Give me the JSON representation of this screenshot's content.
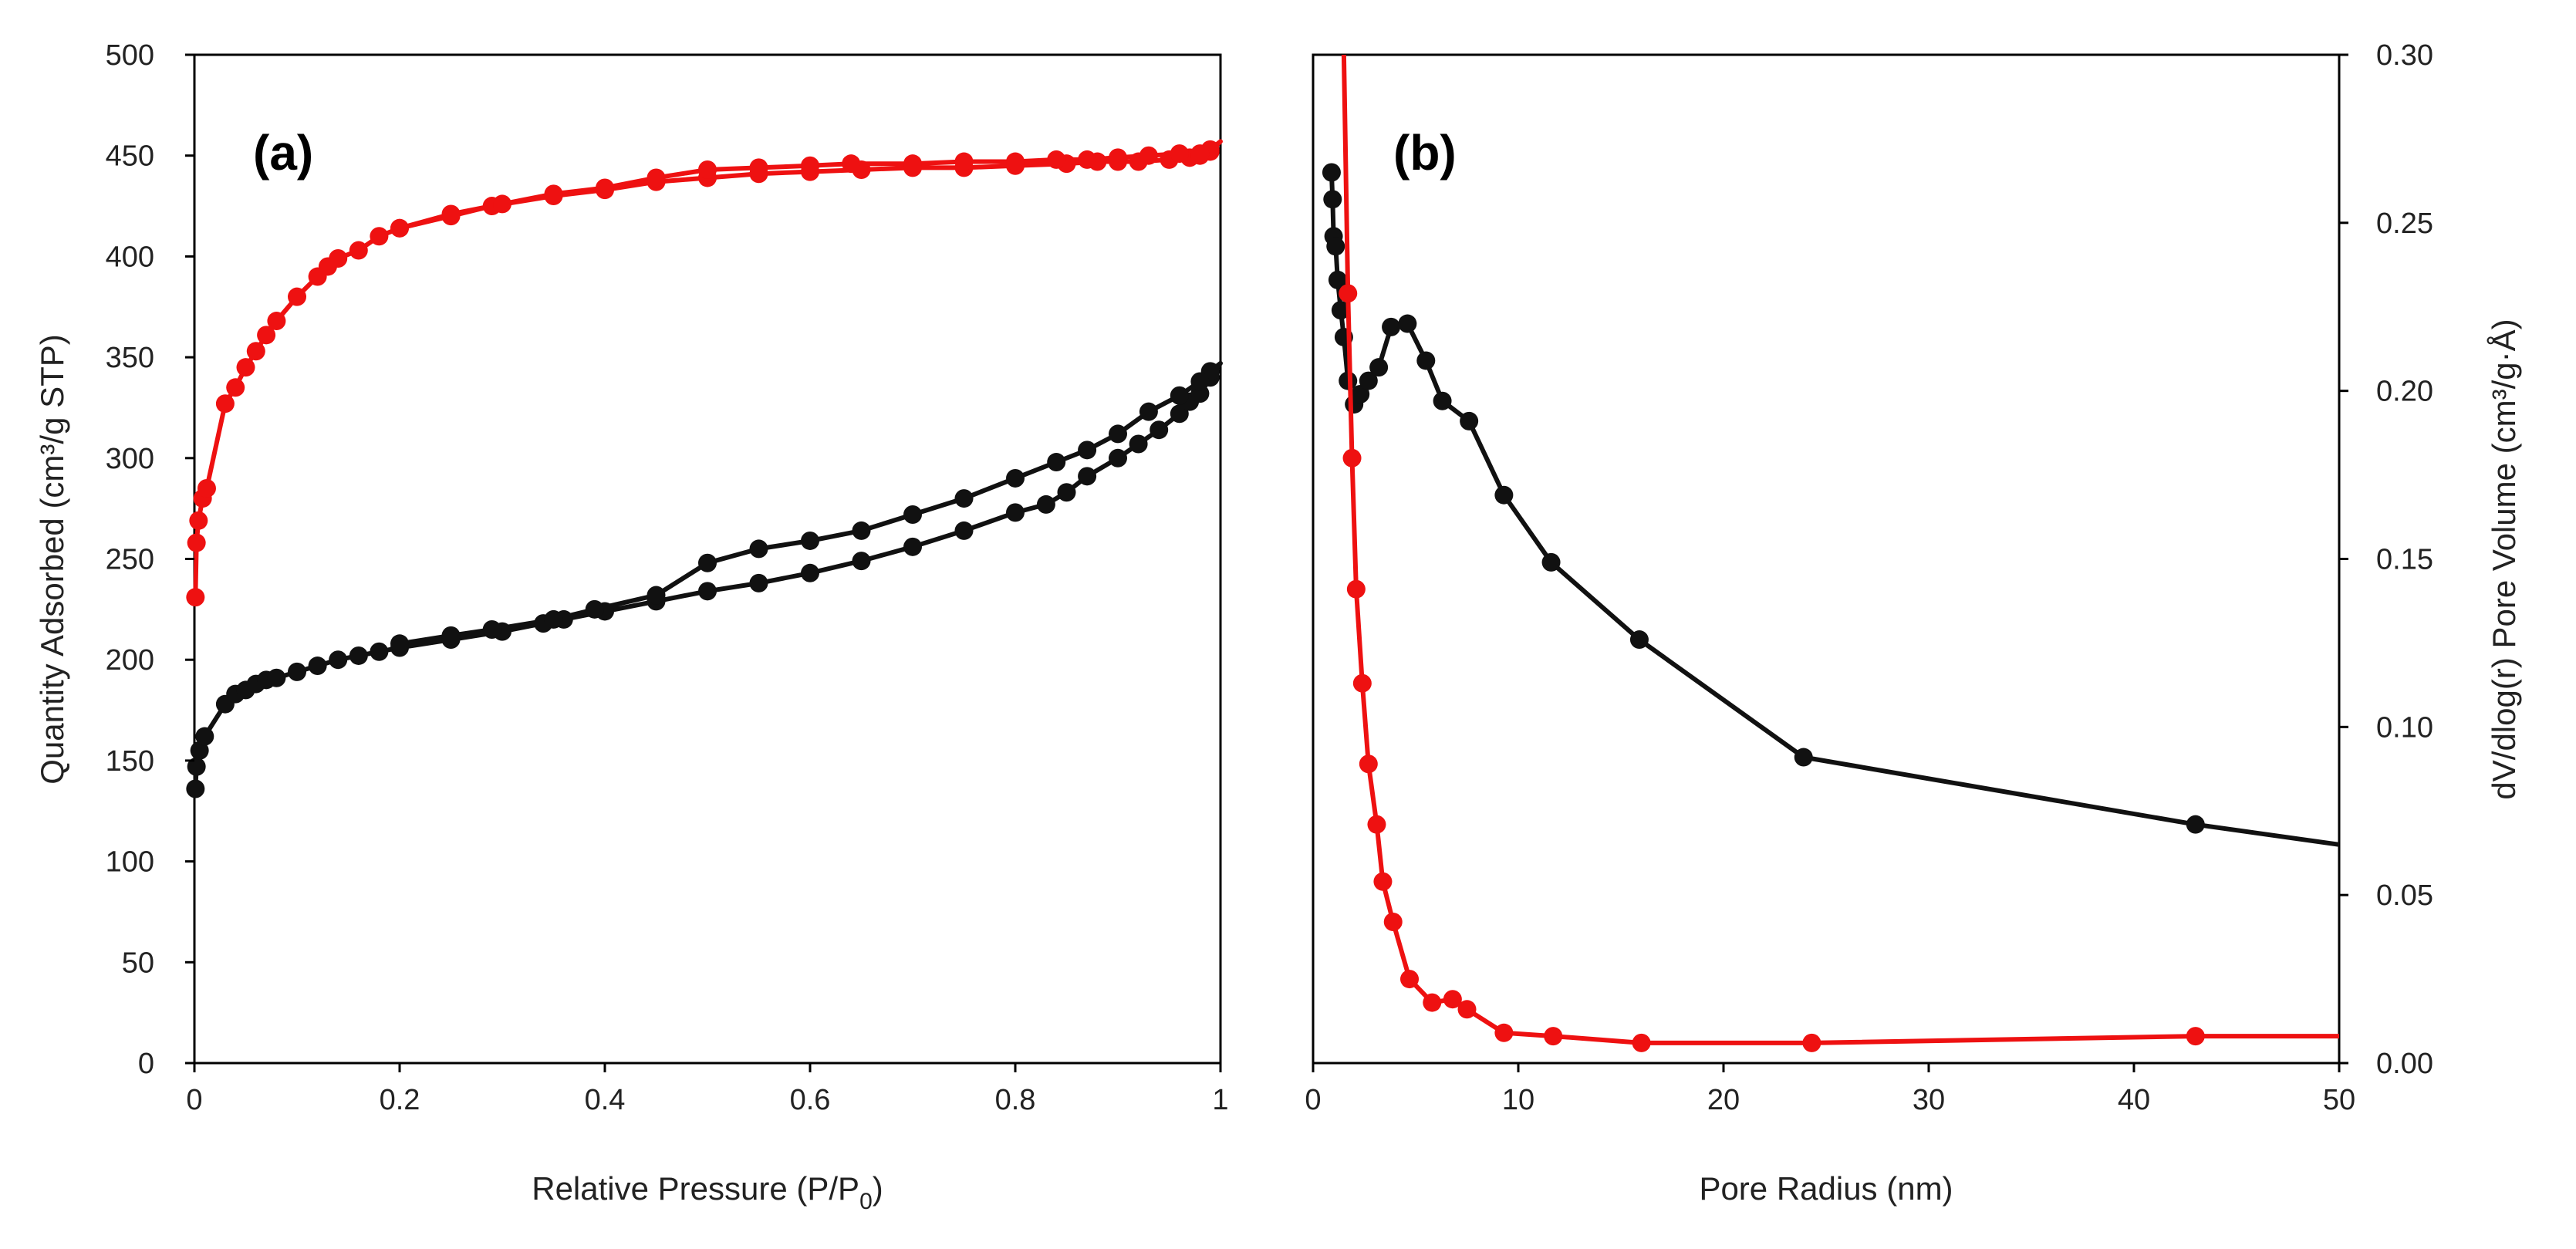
{
  "chart_data": [
    {
      "type": "line",
      "panel_label": "(a)",
      "xlabel_main": "Relative Pressure (P/P",
      "xlabel_sub": "0",
      "xlabel_end": ")",
      "ylabel": "Quantity Adsorbed (cm³/g STP)",
      "xlim": [
        0,
        1
      ],
      "ylim": [
        0,
        500
      ],
      "xticks": [
        0,
        0.2,
        0.4,
        0.6,
        0.8,
        1
      ],
      "xtick_labels": [
        "0",
        "0.2",
        "0.4",
        "0.6",
        "0.8",
        "1"
      ],
      "yticks": [
        0,
        50,
        100,
        150,
        200,
        250,
        300,
        350,
        400,
        450,
        500
      ],
      "ytick_labels": [
        "0",
        "50",
        "100",
        "150",
        "200",
        "250",
        "300",
        "350",
        "400",
        "450",
        "500"
      ],
      "grid": false,
      "series": [
        {
          "color": "#ee1111",
          "x": [
            0.001,
            0.002,
            0.004,
            0.008,
            0.012,
            0.03,
            0.04,
            0.05,
            0.06,
            0.07,
            0.08,
            0.1,
            0.12,
            0.13,
            0.14,
            0.16,
            0.18,
            0.2,
            0.25,
            0.29,
            0.35,
            0.4,
            0.45,
            0.5,
            0.55,
            0.6,
            0.65,
            0.7,
            0.75,
            0.8,
            0.85,
            0.88,
            0.9,
            0.92,
            0.95,
            0.97,
            0.98,
            0.99,
            1.0,
            0.99,
            0.98,
            0.96,
            0.93,
            0.9,
            0.87,
            0.84,
            0.8,
            0.75,
            0.7,
            0.64,
            0.6,
            0.55,
            0.5,
            0.45,
            0.4,
            0.35,
            0.3,
            0.25,
            0.2
          ],
          "y": [
            231,
            258,
            269,
            280,
            285,
            327,
            335,
            345,
            353,
            361,
            368,
            380,
            390,
            395,
            399,
            403,
            410,
            414,
            420,
            425,
            430,
            433,
            437,
            439,
            441,
            442,
            443,
            444,
            444,
            445,
            446,
            447,
            447,
            447,
            448,
            449,
            450,
            452,
            457,
            453,
            451,
            451,
            450,
            449,
            448,
            448,
            447,
            447,
            446,
            446,
            445,
            444,
            443,
            439,
            434,
            431,
            426,
            421,
            414
          ]
        },
        {
          "color": "#111111",
          "x": [
            0.001,
            0.002,
            0.005,
            0.01,
            0.03,
            0.04,
            0.05,
            0.06,
            0.07,
            0.08,
            0.1,
            0.12,
            0.14,
            0.16,
            0.18,
            0.2,
            0.25,
            0.3,
            0.34,
            0.36,
            0.4,
            0.45,
            0.5,
            0.55,
            0.6,
            0.65,
            0.7,
            0.75,
            0.8,
            0.83,
            0.85,
            0.87,
            0.9,
            0.92,
            0.94,
            0.96,
            0.97,
            0.98,
            0.99,
            1.0,
            0.99,
            0.98,
            0.96,
            0.93,
            0.9,
            0.87,
            0.84,
            0.8,
            0.75,
            0.7,
            0.65,
            0.6,
            0.55,
            0.5,
            0.45,
            0.39,
            0.35,
            0.29,
            0.25,
            0.2
          ],
          "y": [
            136,
            147,
            155,
            162,
            178,
            183,
            185,
            188,
            190,
            191,
            194,
            197,
            200,
            202,
            204,
            206,
            210,
            214,
            218,
            220,
            224,
            229,
            234,
            238,
            243,
            249,
            256,
            264,
            273,
            277,
            283,
            291,
            300,
            307,
            314,
            322,
            328,
            332,
            340,
            347,
            343,
            338,
            331,
            323,
            312,
            304,
            298,
            290,
            280,
            272,
            264,
            259,
            255,
            248,
            232,
            225,
            220,
            215,
            212,
            208
          ]
        }
      ]
    },
    {
      "type": "line",
      "panel_label": "(b)",
      "xlabel": "Pore Radius (nm)",
      "ylabel": "dV/dlog(r) Pore Volume (cm³/g·Å)",
      "xlim": [
        0,
        50
      ],
      "ylim": [
        0,
        0.3
      ],
      "xticks": [
        0,
        10,
        20,
        30,
        40,
        50
      ],
      "xtick_labels": [
        "0",
        "10",
        "20",
        "30",
        "40",
        "50"
      ],
      "yticks": [
        0.0,
        0.05,
        0.1,
        0.15,
        0.2,
        0.25,
        0.3
      ],
      "ytick_labels": [
        "0.00",
        "0.05",
        "0.10",
        "0.15",
        "0.20",
        "0.25",
        "0.30"
      ],
      "y_axis_side": "right",
      "grid": false,
      "series": [
        {
          "color": "#111111",
          "x": [
            0.9,
            0.95,
            1.0,
            1.1,
            1.2,
            1.35,
            1.5,
            1.7,
            2.0,
            2.3,
            2.7,
            3.2,
            3.8,
            4.6,
            5.5,
            6.3,
            7.6,
            9.3,
            11.6,
            15.9,
            23.9,
            43.0,
            50.0
          ],
          "y": [
            0.265,
            0.257,
            0.246,
            0.243,
            0.233,
            0.224,
            0.216,
            0.203,
            0.196,
            0.199,
            0.203,
            0.207,
            0.219,
            0.22,
            0.209,
            0.197,
            0.191,
            0.169,
            0.149,
            0.126,
            0.091,
            0.071,
            0.065
          ]
        },
        {
          "color": "#ee1111",
          "x": [
            1.5,
            1.7,
            1.9,
            2.1,
            2.4,
            2.7,
            3.1,
            3.4,
            3.9,
            4.7,
            5.8,
            6.8,
            7.5,
            9.3,
            11.7,
            16.0,
            24.3,
            43.0,
            50.0
          ],
          "y": [
            0.3,
            0.229,
            0.18,
            0.141,
            0.113,
            0.089,
            0.071,
            0.054,
            0.042,
            0.025,
            0.018,
            0.019,
            0.016,
            0.009,
            0.008,
            0.006,
            0.006,
            0.008,
            0.008
          ]
        }
      ]
    }
  ]
}
